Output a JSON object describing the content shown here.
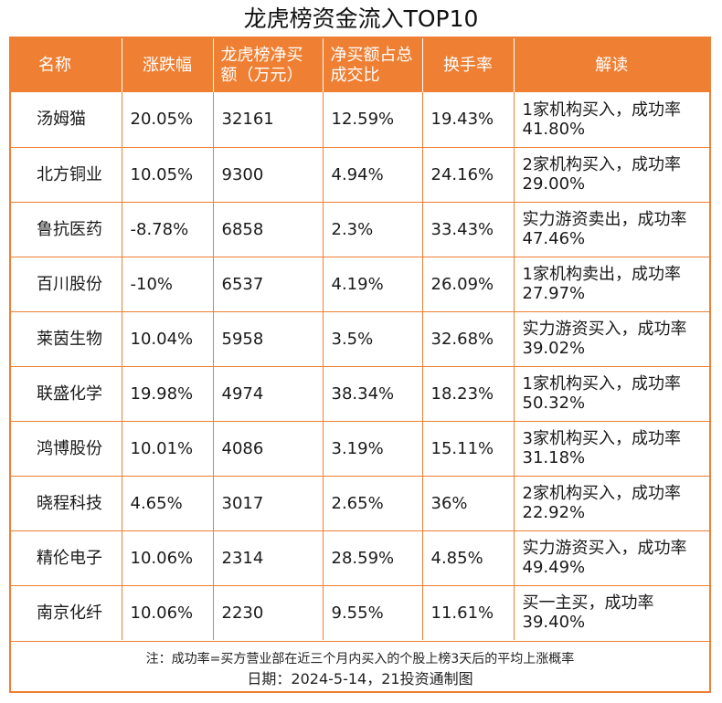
{
  "title": "龙虎榜资金流入TOP10",
  "table": {
    "headers": [
      "名称",
      "涨跌幅",
      "龙虎榜净买额（万元）",
      "净买额占总成交比",
      "换手率",
      "解读"
    ],
    "rows": [
      [
        "汤姆猫",
        "20.05%",
        "32161",
        "12.59%",
        "19.43%",
        "1家机构买入，成功率41.80%"
      ],
      [
        "北方铜业",
        "10.05%",
        "9300",
        "4.94%",
        "24.16%",
        "2家机构买入，成功率29.00%"
      ],
      [
        "鲁抗医药",
        "-8.78%",
        "6858",
        "2.3%",
        "33.43%",
        "实力游资卖出，成功率47.46%"
      ],
      [
        "百川股份",
        "-10%",
        "6537",
        "4.19%",
        "26.09%",
        "1家机构卖出，成功率27.97%"
      ],
      [
        "莱茵生物",
        "10.04%",
        "5958",
        "3.5%",
        "32.68%",
        "实力游资买入，成功率39.02%"
      ],
      [
        "联盛化学",
        "19.98%",
        "4974",
        "38.34%",
        "18.23%",
        "1家机构买入，成功率50.32%"
      ],
      [
        "鸿博股份",
        "10.01%",
        "4086",
        "3.19%",
        "15.11%",
        "3家机构买入，成功率31.18%"
      ],
      [
        "晓程科技",
        "4.65%",
        "3017",
        "2.65%",
        "36%",
        "2家机构买入，成功率22.92%"
      ],
      [
        "精伦电子",
        "10.06%",
        "2314",
        "28.59%",
        "4.85%",
        "实力游资买入，成功率49.49%"
      ],
      [
        "南京化纤",
        "10.06%",
        "2230",
        "9.55%",
        "11.61%",
        "买一主买，成功率39.40%"
      ]
    ]
  },
  "footer": {
    "note": "注：成功率=买方营业部在近三个月内买入的个股上榜3天后的平均上涨概率",
    "date": "日期：2024-5-14，21投资通制图"
  },
  "colors": {
    "accent": "#ee7f33",
    "header_text": "#ffffff"
  }
}
